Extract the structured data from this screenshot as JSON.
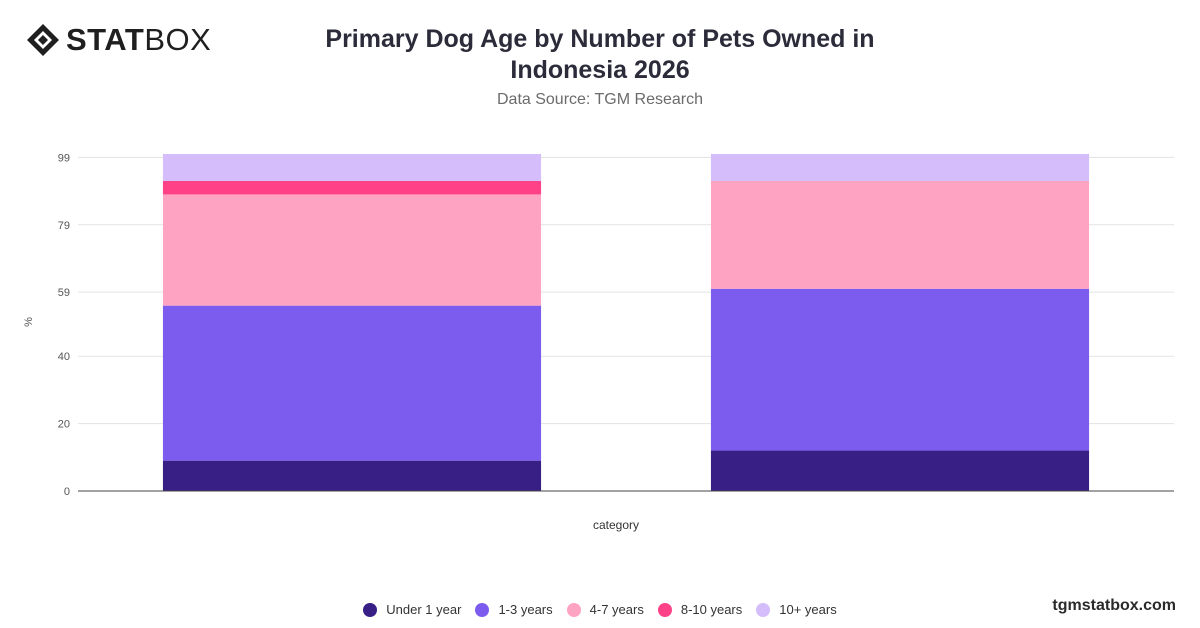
{
  "brand": {
    "logo_bold": "STAT",
    "logo_light": "BOX"
  },
  "footer": {
    "site": "tgmstatbox.com"
  },
  "chart_data": {
    "type": "bar",
    "stacked": true,
    "title": "Primary Dog Age by Number of Pets Owned in Indonesia 2026",
    "subtitle": "Data Source: TGM Research",
    "xlabel": "category",
    "ylabel": "%",
    "ylim": [
      0,
      100
    ],
    "yticks": [
      0,
      20,
      40,
      59,
      79,
      99
    ],
    "grid": true,
    "legend_position": "bottom",
    "categories": [
      "",
      ""
    ],
    "series": [
      {
        "name": "Under 1 year",
        "color": "#371f86",
        "values": [
          9,
          12
        ]
      },
      {
        "name": "1-3 years",
        "color": "#7b5cee",
        "values": [
          46,
          48
        ]
      },
      {
        "name": "4-7 years",
        "color": "#ffa3c2",
        "values": [
          33,
          32
        ]
      },
      {
        "name": "8-10 years",
        "color": "#ff4287",
        "values": [
          4,
          0
        ]
      },
      {
        "name": "10+ years",
        "color": "#d4bdfa",
        "values": [
          8,
          8
        ]
      }
    ]
  }
}
